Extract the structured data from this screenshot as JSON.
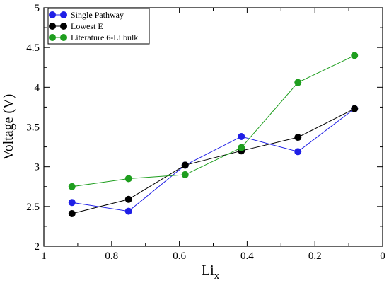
{
  "chart_data": {
    "type": "line",
    "title": "",
    "xlabel": "Li",
    "xlabel_subscript": "x",
    "ylabel": "Voltage (V)",
    "xlim": [
      1,
      0
    ],
    "ylim": [
      2,
      5
    ],
    "x_reversed": true,
    "xticks": [
      1,
      0.8,
      0.6,
      0.4,
      0.2,
      0
    ],
    "xtick_labels": [
      "1",
      "0.8",
      "0.6",
      "0.4",
      "0.2",
      "0"
    ],
    "yticks": [
      2,
      2.5,
      3,
      3.5,
      4,
      4.5,
      5
    ],
    "ytick_labels": [
      "2",
      "2.5",
      "3",
      "3.5",
      "4",
      "4.5",
      "5"
    ],
    "grid": false,
    "legend_position": "top-left",
    "series": [
      {
        "name": "Single Pathway",
        "color": "#1f1fe6",
        "x": [
          0.917,
          0.75,
          0.583,
          0.417,
          0.25,
          0.083
        ],
        "y": [
          2.55,
          2.44,
          3.02,
          3.38,
          3.19,
          3.73
        ]
      },
      {
        "name": "Lowest E",
        "color": "#000000",
        "x": [
          0.917,
          0.75,
          0.583,
          0.417,
          0.25,
          0.083
        ],
        "y": [
          2.41,
          2.59,
          3.02,
          3.2,
          3.37,
          3.73
        ]
      },
      {
        "name": "Literature 6-Li bulk",
        "color": "#1e9e1e",
        "x": [
          0.917,
          0.75,
          0.583,
          0.417,
          0.25,
          0.083
        ],
        "y": [
          2.75,
          2.85,
          2.9,
          3.24,
          4.06,
          4.4
        ]
      }
    ]
  }
}
